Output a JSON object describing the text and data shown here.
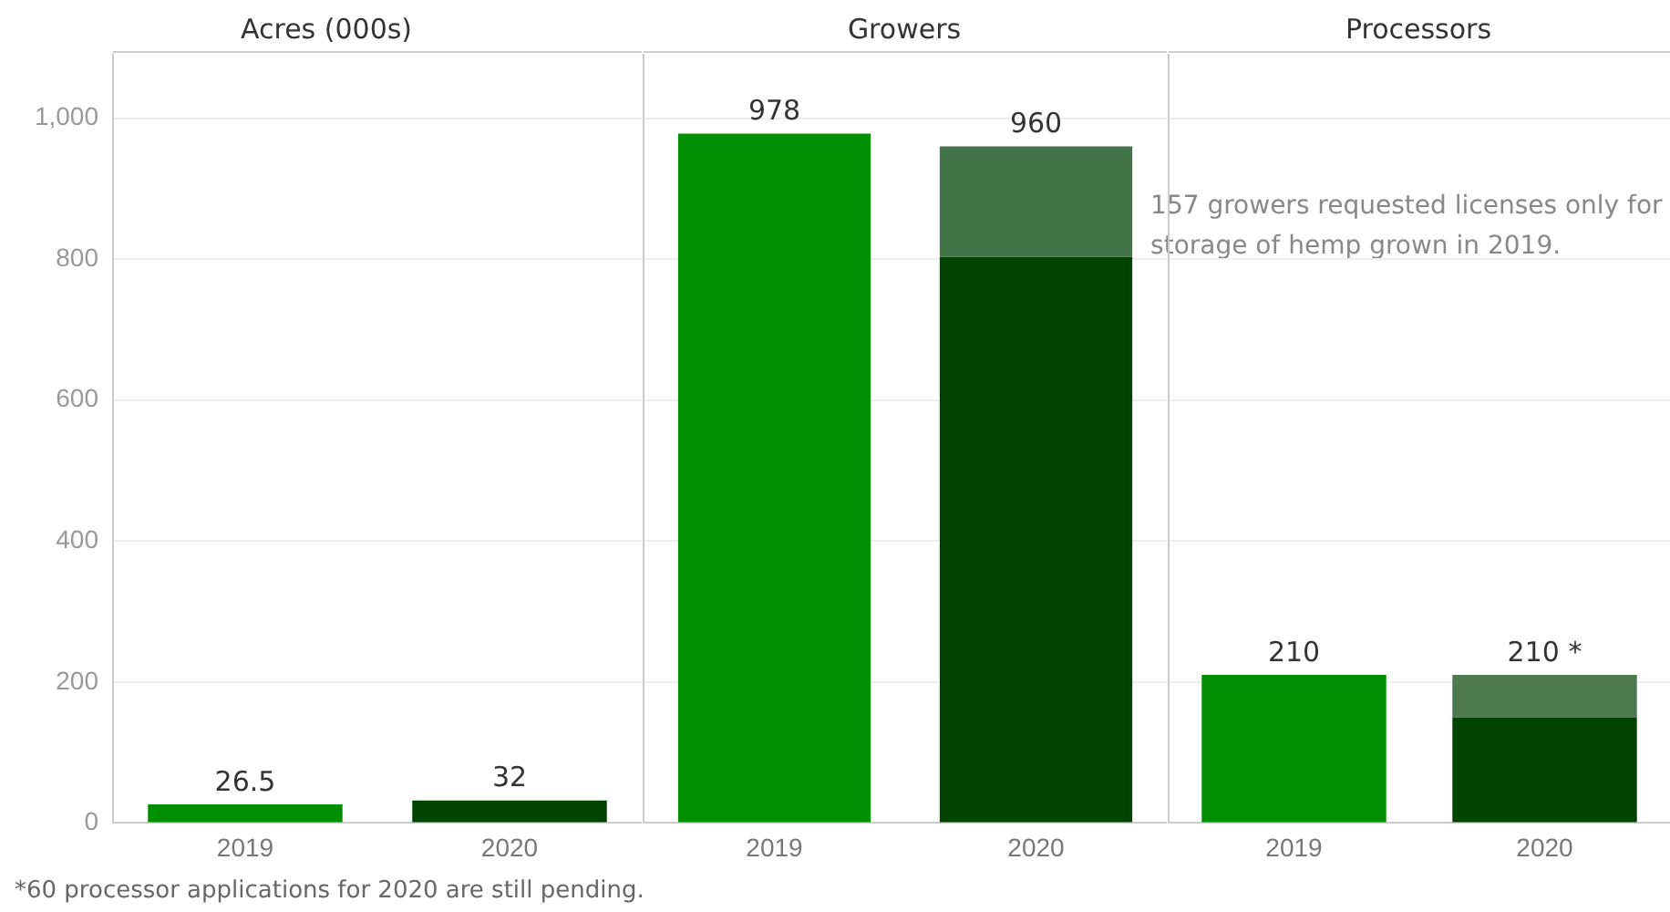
{
  "chart_data": [
    {
      "type": "bar",
      "title": "Acres (000s)",
      "categories": [
        "2019",
        "2020"
      ],
      "series": [
        {
          "colors": [
            "#008f00",
            "#004400"
          ],
          "values": [
            26.5,
            32
          ]
        }
      ],
      "ylim": [
        0,
        1090
      ],
      "yticks": [
        0,
        200,
        400,
        600,
        800,
        {
          "value": 1000,
          "label": "1,000"
        }
      ],
      "grid": "y",
      "legend": false,
      "data_labels": true,
      "annotations": [
        "*60 processor applications for 2020 are still pending."
      ]
    },
    {
      "type": "bar",
      "title": "Growers",
      "categories": [
        "2019",
        "2020"
      ],
      "stacked": true,
      "series": [
        {
          "colors": [
            "#008f00",
            "#004400"
          ],
          "values": [
            978,
            803
          ]
        },
        {
          "color": "#44744a",
          "values": [
            null,
            157
          ]
        }
      ],
      "totals": [
        "978",
        "960"
      ],
      "ylim": [
        0,
        1090
      ],
      "yticks": [
        0,
        200,
        400,
        600,
        800,
        1000
      ],
      "grid": "y",
      "legend": false,
      "tick_labels": "x",
      "annotations": [
        "157 growers requested licenses only for storage of hemp grown in 2019."
      ]
    },
    {
      "type": "bar",
      "title": "Processors",
      "categories": [
        "2019",
        "2020"
      ],
      "stacked": true,
      "series": [
        {
          "colors": [
            "#008f00",
            "#004400"
          ],
          "values": [
            210,
            150
          ]
        },
        {
          "color": "#4c7a4e",
          "values": [
            null,
            60
          ]
        }
      ],
      "totals": [
        "210",
        "210 *"
      ],
      "ylim": [
        0,
        1090
      ],
      "yticks": [
        0,
        200,
        400,
        600,
        800,
        1000
      ],
      "grid": "y",
      "legend": false,
      "tick_labels": "x"
    }
  ]
}
